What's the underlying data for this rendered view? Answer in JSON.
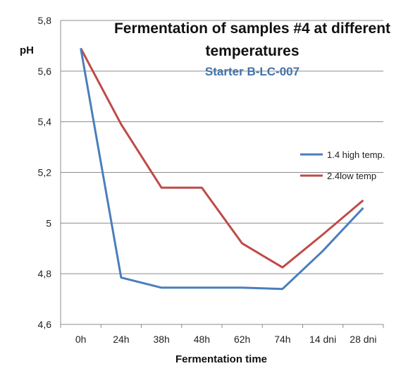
{
  "chart_data": {
    "type": "line",
    "title": "Fermentation of samples #4 at different temperatures",
    "title_lines": [
      "Fermentation of samples #4 at different",
      "temperatures"
    ],
    "subtitle": "Starter B-LC-007",
    "subtitle_color": "#4472a8",
    "xlabel": "Fermentation time",
    "ylabel": "pH",
    "categories": [
      "0h",
      "24h",
      "38h",
      "48h",
      "62h",
      "74h",
      "14 dni",
      "28 dni"
    ],
    "ylim": [
      4.6,
      5.8
    ],
    "yticks": [
      4.6,
      4.8,
      5.0,
      5.2,
      5.4,
      5.6,
      5.8
    ],
    "ytick_labels": [
      "4,6",
      "4,8",
      "5",
      "5,2",
      "5,4",
      "5,6",
      "5,8"
    ],
    "grid": true,
    "legend_position": "right",
    "series": [
      {
        "name": "1.4 high temp.",
        "color": "#4a7ebb",
        "values": [
          5.69,
          4.785,
          4.745,
          4.745,
          4.745,
          4.74,
          4.89,
          5.06
        ]
      },
      {
        "name": "2.4low temp",
        "color": "#be4b48",
        "values": [
          5.69,
          5.39,
          5.14,
          5.14,
          4.92,
          4.825,
          4.955,
          5.09
        ]
      }
    ]
  }
}
